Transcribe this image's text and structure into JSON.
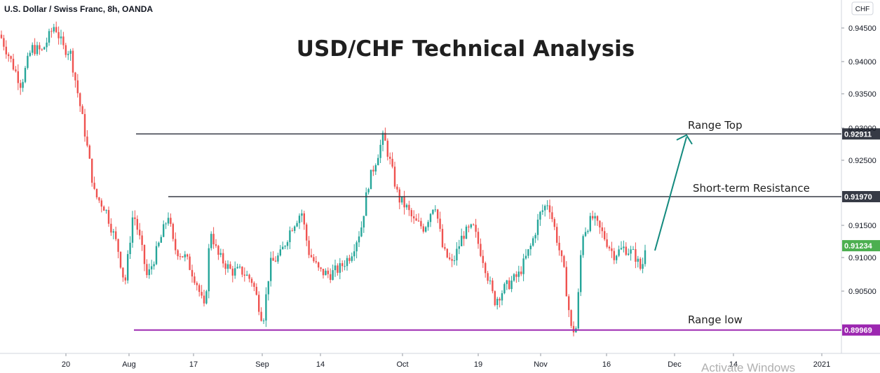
{
  "chart_data": {
    "type": "candlestick",
    "symbol_title": "U.S. Dollar / Swiss Franc, 8h, OANDA",
    "title": "USD/CHF Technical Analysis",
    "currency": "CHF",
    "ylim": [
      0.8985,
      0.9465
    ],
    "y_ticks": [
      "0.94500",
      "0.94000",
      "0.93500",
      "0.93000",
      "0.92500",
      "0.91500",
      "0.91000",
      "0.90500"
    ],
    "x_ticks": [
      "20",
      "Aug",
      "17",
      "Sep",
      "14",
      "Oct",
      "19",
      "Nov",
      "16",
      "Dec",
      "14",
      "2021"
    ],
    "price_path": [
      [
        0,
        0.944
      ],
      [
        30,
        0.9365
      ],
      [
        45,
        0.942
      ],
      [
        60,
        0.9415
      ],
      [
        78,
        0.9455
      ],
      [
        90,
        0.942
      ],
      [
        100,
        0.9415
      ],
      [
        120,
        0.93
      ],
      [
        135,
        0.92
      ],
      [
        150,
        0.918
      ],
      [
        168,
        0.912
      ],
      [
        178,
        0.9065
      ],
      [
        190,
        0.9175
      ],
      [
        200,
        0.913
      ],
      [
        210,
        0.9075
      ],
      [
        225,
        0.912
      ],
      [
        240,
        0.917
      ],
      [
        248,
        0.912
      ],
      [
        265,
        0.9105
      ],
      [
        280,
        0.907
      ],
      [
        292,
        0.9025
      ],
      [
        300,
        0.915
      ],
      [
        310,
        0.911
      ],
      [
        330,
        0.9085
      ],
      [
        345,
        0.9085
      ],
      [
        360,
        0.907
      ],
      [
        375,
        0.901
      ],
      [
        385,
        0.9095
      ],
      [
        400,
        0.911
      ],
      [
        415,
        0.915
      ],
      [
        430,
        0.9175
      ],
      [
        440,
        0.9115
      ],
      [
        455,
        0.9085
      ],
      [
        470,
        0.908
      ],
      [
        485,
        0.909
      ],
      [
        500,
        0.911
      ],
      [
        515,
        0.915
      ],
      [
        525,
        0.9215
      ],
      [
        540,
        0.9265
      ],
      [
        547,
        0.9288
      ],
      [
        556,
        0.925
      ],
      [
        568,
        0.9195
      ],
      [
        580,
        0.918
      ],
      [
        590,
        0.916
      ],
      [
        605,
        0.915
      ],
      [
        620,
        0.919
      ],
      [
        632,
        0.9115
      ],
      [
        645,
        0.9095
      ],
      [
        660,
        0.914
      ],
      [
        675,
        0.915
      ],
      [
        690,
        0.91
      ],
      [
        705,
        0.904
      ],
      [
        720,
        0.906
      ],
      [
        740,
        0.908
      ],
      [
        758,
        0.9125
      ],
      [
        770,
        0.917
      ],
      [
        782,
        0.919
      ],
      [
        795,
        0.913
      ],
      [
        805,
        0.908
      ],
      [
        815,
        0.8995
      ],
      [
        822,
        0.9
      ],
      [
        830,
        0.914
      ],
      [
        845,
        0.9165
      ],
      [
        860,
        0.914
      ],
      [
        875,
        0.911
      ],
      [
        890,
        0.912
      ],
      [
        905,
        0.911
      ],
      [
        915,
        0.9085
      ],
      [
        920,
        0.9123
      ]
    ],
    "levels": [
      {
        "name": "Range Top",
        "value": 0.92911,
        "label": "0.92911",
        "color": "#363a45"
      },
      {
        "name": "Short-term Resistance",
        "value": 0.9197,
        "label": "0.91970",
        "color": "#363a45"
      },
      {
        "name": "Range low",
        "value": 0.89969,
        "label": "0.89969",
        "color": "#9c27b0"
      }
    ],
    "last_price": {
      "value": 0.91234,
      "label": "0.91234",
      "color": "#4caf50"
    },
    "colors": {
      "up": "#26a69a",
      "down": "#ef5350",
      "arrow": "#138a7e"
    }
  },
  "watermark": "Activate Windows"
}
